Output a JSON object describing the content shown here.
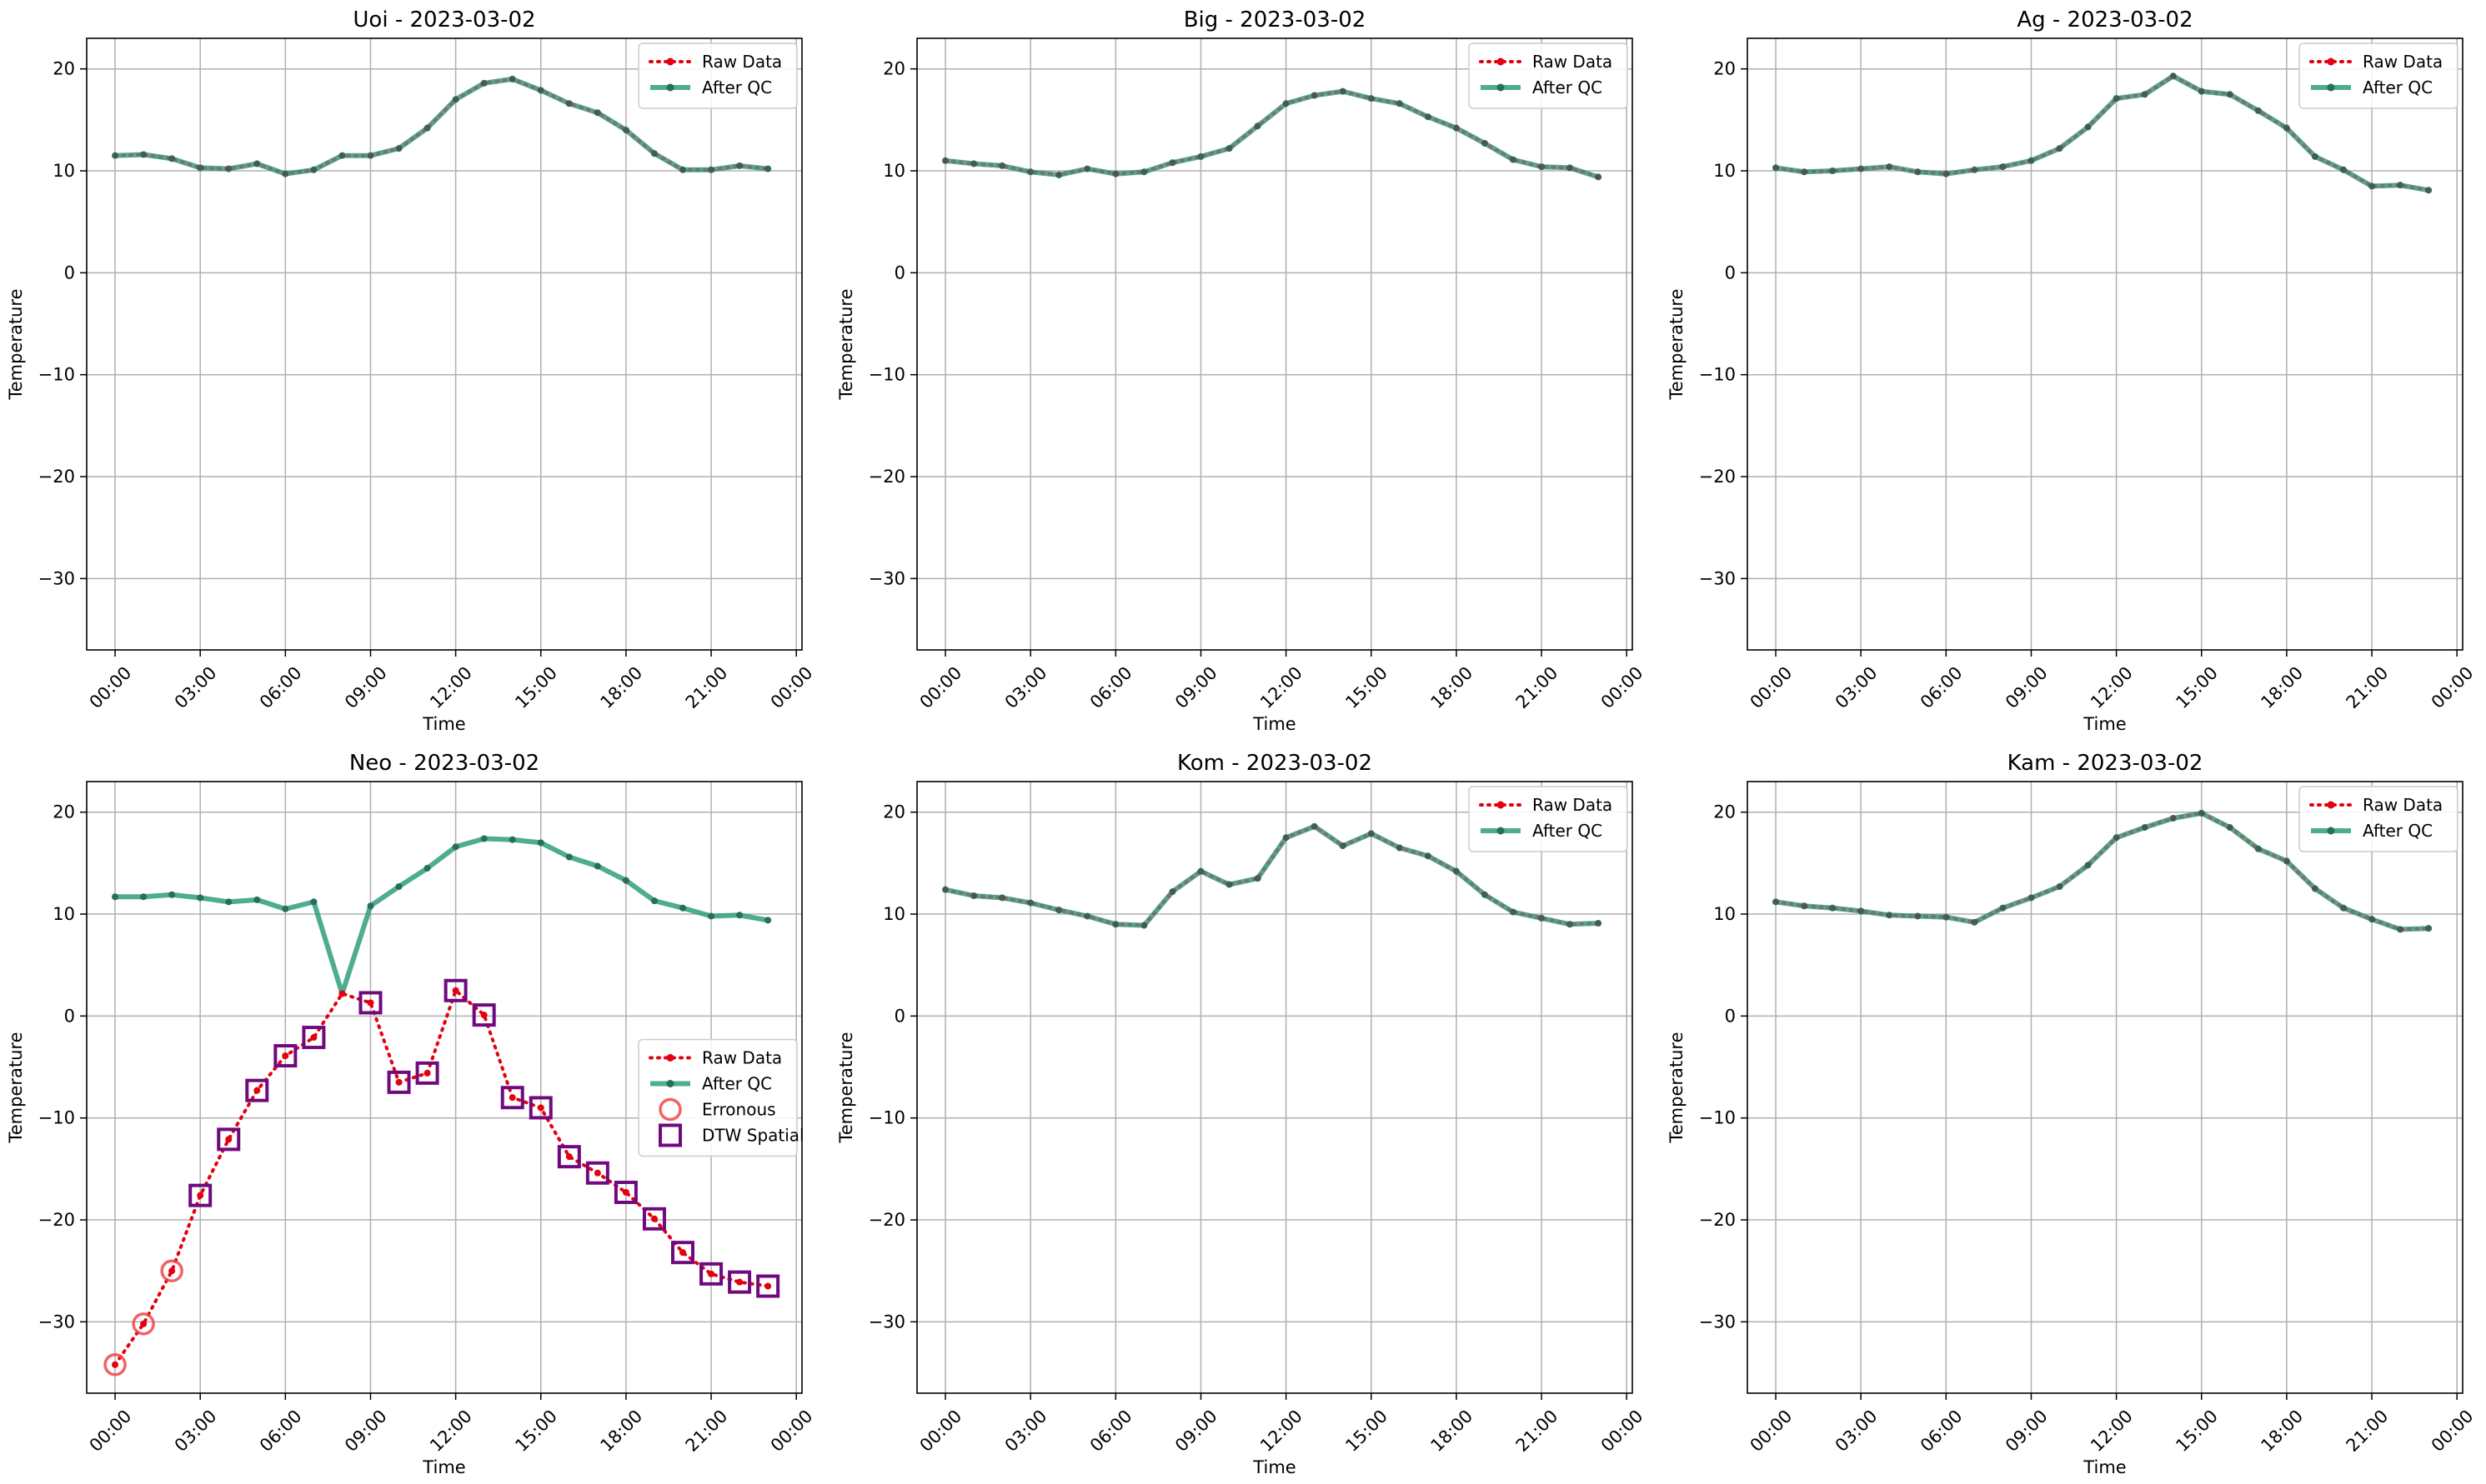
{
  "chart_data": [
    {
      "type": "line",
      "title": "Uoi - 2023-03-02",
      "xlabel": "Time",
      "ylabel": "Temperature",
      "ylim": [
        -37,
        23
      ],
      "yticks": [
        -30,
        -20,
        -10,
        0,
        10,
        20
      ],
      "xlim": [
        -1,
        24.2
      ],
      "xticks": [
        "00:00",
        "03:00",
        "06:00",
        "09:00",
        "12:00",
        "15:00",
        "18:00",
        "21:00",
        "00:00"
      ],
      "grid": true,
      "legend_position": "top-right",
      "legend": [
        "Raw Data",
        "After QC"
      ],
      "series": [
        {
          "name": "Raw Data",
          "x": [
            0,
            1,
            2,
            3,
            4,
            5,
            6,
            7,
            8,
            9,
            10,
            11,
            12,
            13,
            14,
            15,
            16,
            17,
            18,
            19,
            20,
            21,
            22,
            23
          ],
          "values": [
            11.5,
            11.6,
            11.2,
            10.3,
            10.2,
            10.7,
            9.7,
            10.1,
            11.5,
            11.5,
            12.2,
            14.2,
            17.0,
            18.6,
            19.0,
            17.9,
            16.6,
            15.7,
            14.0,
            11.7,
            10.1,
            10.1,
            10.5,
            10.2
          ]
        },
        {
          "name": "After QC",
          "x": [
            0,
            1,
            2,
            3,
            4,
            5,
            6,
            7,
            8,
            9,
            10,
            11,
            12,
            13,
            14,
            15,
            16,
            17,
            18,
            19,
            20,
            21,
            22,
            23
          ],
          "values": [
            11.5,
            11.6,
            11.2,
            10.3,
            10.2,
            10.7,
            9.7,
            10.1,
            11.5,
            11.5,
            12.2,
            14.2,
            17.0,
            18.6,
            19.0,
            17.9,
            16.6,
            15.7,
            14.0,
            11.7,
            10.1,
            10.1,
            10.5,
            10.2
          ]
        }
      ]
    },
    {
      "type": "line",
      "title": "Big - 2023-03-02",
      "xlabel": "Time",
      "ylabel": "Temperature",
      "ylim": [
        -37,
        23
      ],
      "yticks": [
        -30,
        -20,
        -10,
        0,
        10,
        20
      ],
      "xlim": [
        -1,
        24.2
      ],
      "xticks": [
        "00:00",
        "03:00",
        "06:00",
        "09:00",
        "12:00",
        "15:00",
        "18:00",
        "21:00",
        "00:00"
      ],
      "grid": true,
      "legend_position": "top-right",
      "legend": [
        "Raw Data",
        "After QC"
      ],
      "series": [
        {
          "name": "Raw Data",
          "x": [
            0,
            1,
            2,
            3,
            4,
            5,
            6,
            7,
            8,
            9,
            10,
            11,
            12,
            13,
            14,
            15,
            16,
            17,
            18,
            19,
            20,
            21,
            22,
            23
          ],
          "values": [
            11.0,
            10.7,
            10.5,
            9.9,
            9.6,
            10.2,
            9.7,
            9.9,
            10.8,
            11.4,
            12.2,
            14.4,
            16.6,
            17.4,
            17.8,
            17.1,
            16.6,
            15.3,
            14.2,
            12.7,
            11.1,
            10.4,
            10.3,
            9.4
          ]
        },
        {
          "name": "After QC",
          "x": [
            0,
            1,
            2,
            3,
            4,
            5,
            6,
            7,
            8,
            9,
            10,
            11,
            12,
            13,
            14,
            15,
            16,
            17,
            18,
            19,
            20,
            21,
            22,
            23
          ],
          "values": [
            11.0,
            10.7,
            10.5,
            9.9,
            9.6,
            10.2,
            9.7,
            9.9,
            10.8,
            11.4,
            12.2,
            14.4,
            16.6,
            17.4,
            17.8,
            17.1,
            16.6,
            15.3,
            14.2,
            12.7,
            11.1,
            10.4,
            10.3,
            9.4
          ]
        }
      ]
    },
    {
      "type": "line",
      "title": "Ag - 2023-03-02",
      "xlabel": "Time",
      "ylabel": "Temperature",
      "ylim": [
        -37,
        23
      ],
      "yticks": [
        -30,
        -20,
        -10,
        0,
        10,
        20
      ],
      "xlim": [
        -1,
        24.2
      ],
      "xticks": [
        "00:00",
        "03:00",
        "06:00",
        "09:00",
        "12:00",
        "15:00",
        "18:00",
        "21:00",
        "00:00"
      ],
      "grid": true,
      "legend_position": "top-right",
      "legend": [
        "Raw Data",
        "After QC"
      ],
      "series": [
        {
          "name": "Raw Data",
          "x": [
            0,
            1,
            2,
            3,
            4,
            5,
            6,
            7,
            8,
            9,
            10,
            11,
            12,
            13,
            14,
            15,
            16,
            17,
            18,
            19,
            20,
            21,
            22,
            23
          ],
          "values": [
            10.3,
            9.9,
            10.0,
            10.2,
            10.4,
            9.9,
            9.7,
            10.1,
            10.4,
            11.0,
            12.2,
            14.3,
            17.1,
            17.5,
            19.3,
            17.8,
            17.5,
            15.9,
            14.2,
            11.4,
            10.1,
            8.5,
            8.6,
            8.1
          ]
        },
        {
          "name": "After QC",
          "x": [
            0,
            1,
            2,
            3,
            4,
            5,
            6,
            7,
            8,
            9,
            10,
            11,
            12,
            13,
            14,
            15,
            16,
            17,
            18,
            19,
            20,
            21,
            22,
            23
          ],
          "values": [
            10.3,
            9.9,
            10.0,
            10.2,
            10.4,
            9.9,
            9.7,
            10.1,
            10.4,
            11.0,
            12.2,
            14.3,
            17.1,
            17.5,
            19.3,
            17.8,
            17.5,
            15.9,
            14.2,
            11.4,
            10.1,
            8.5,
            8.6,
            8.1
          ]
        }
      ]
    },
    {
      "type": "line",
      "title": "Neo - 2023-03-02",
      "xlabel": "Time",
      "ylabel": "Temperature",
      "ylim": [
        -37,
        23
      ],
      "yticks": [
        -30,
        -20,
        -10,
        0,
        10,
        20
      ],
      "xlim": [
        -1,
        24.2
      ],
      "xticks": [
        "00:00",
        "03:00",
        "06:00",
        "09:00",
        "12:00",
        "15:00",
        "18:00",
        "21:00",
        "00:00"
      ],
      "grid": true,
      "legend_position": "center-right",
      "legend": [
        "Raw Data",
        "After QC",
        "Erronous",
        "DTW Spatial"
      ],
      "series": [
        {
          "name": "Raw Data",
          "x": [
            0,
            1,
            2,
            3,
            4,
            5,
            6,
            7,
            8,
            9,
            10,
            11,
            12,
            13,
            14,
            15,
            16,
            17,
            18,
            19,
            20,
            21,
            22,
            23
          ],
          "values": [
            -34.2,
            -30.2,
            -25.0,
            -17.6,
            -12.1,
            -7.3,
            -3.9,
            -2.1,
            2.2,
            1.3,
            -6.5,
            -5.6,
            2.5,
            0.1,
            -8.0,
            -9.0,
            -13.8,
            -15.4,
            -17.3,
            -19.9,
            -23.2,
            -25.3,
            -26.1,
            -26.5
          ]
        },
        {
          "name": "After QC",
          "x": [
            0,
            1,
            2,
            3,
            4,
            5,
            6,
            7,
            8,
            9,
            10,
            11,
            12,
            13,
            14,
            15,
            16,
            17,
            18,
            19,
            20,
            21,
            22,
            23
          ],
          "values": [
            11.7,
            11.7,
            11.9,
            11.6,
            11.2,
            11.4,
            10.5,
            11.2,
            2.2,
            10.8,
            12.7,
            14.5,
            16.6,
            17.4,
            17.3,
            17.0,
            15.6,
            14.7,
            13.3,
            11.3,
            10.6,
            9.8,
            9.9,
            9.4
          ]
        },
        {
          "name": "Erronous",
          "x": [
            0,
            1,
            2
          ],
          "values": [
            -34.2,
            -30.2,
            -25.0
          ]
        },
        {
          "name": "DTW Spatial",
          "x": [
            3,
            4,
            5,
            6,
            7,
            9,
            10,
            11,
            12,
            13,
            14,
            15,
            16,
            17,
            18,
            19,
            20,
            21,
            22,
            23
          ],
          "values": [
            -17.6,
            -12.1,
            -7.3,
            -3.9,
            -2.1,
            1.3,
            -6.5,
            -5.6,
            2.5,
            0.1,
            -8.0,
            -9.0,
            -13.8,
            -15.4,
            -17.3,
            -19.9,
            -23.2,
            -25.3,
            -26.1,
            -26.5
          ]
        }
      ]
    },
    {
      "type": "line",
      "title": "Kom - 2023-03-02",
      "xlabel": "Time",
      "ylabel": "Temperature",
      "ylim": [
        -37,
        23
      ],
      "yticks": [
        -30,
        -20,
        -10,
        0,
        10,
        20
      ],
      "xlim": [
        -1,
        24.2
      ],
      "xticks": [
        "00:00",
        "03:00",
        "06:00",
        "09:00",
        "12:00",
        "15:00",
        "18:00",
        "21:00",
        "00:00"
      ],
      "grid": true,
      "legend_position": "top-right",
      "legend": [
        "Raw Data",
        "After QC"
      ],
      "series": [
        {
          "name": "Raw Data",
          "x": [
            0,
            1,
            2,
            3,
            4,
            5,
            6,
            7,
            8,
            9,
            10,
            11,
            12,
            13,
            14,
            15,
            16,
            17,
            18,
            19,
            20,
            21,
            22,
            23
          ],
          "values": [
            12.4,
            11.8,
            11.6,
            11.1,
            10.4,
            9.8,
            9.0,
            8.9,
            12.2,
            14.2,
            12.9,
            13.5,
            17.5,
            18.6,
            16.7,
            17.9,
            16.5,
            15.7,
            14.2,
            11.9,
            10.2,
            9.6,
            9.0,
            9.1
          ]
        },
        {
          "name": "After QC",
          "x": [
            0,
            1,
            2,
            3,
            4,
            5,
            6,
            7,
            8,
            9,
            10,
            11,
            12,
            13,
            14,
            15,
            16,
            17,
            18,
            19,
            20,
            21,
            22,
            23
          ],
          "values": [
            12.4,
            11.8,
            11.6,
            11.1,
            10.4,
            9.8,
            9.0,
            8.9,
            12.2,
            14.2,
            12.9,
            13.5,
            17.5,
            18.6,
            16.7,
            17.9,
            16.5,
            15.7,
            14.2,
            11.9,
            10.2,
            9.6,
            9.0,
            9.1
          ]
        }
      ]
    },
    {
      "type": "line",
      "title": "Kam - 2023-03-02",
      "xlabel": "Time",
      "ylabel": "Temperature",
      "ylim": [
        -37,
        23
      ],
      "yticks": [
        -30,
        -20,
        -10,
        0,
        10,
        20
      ],
      "xlim": [
        -1,
        24.2
      ],
      "xticks": [
        "00:00",
        "03:00",
        "06:00",
        "09:00",
        "12:00",
        "15:00",
        "18:00",
        "21:00",
        "00:00"
      ],
      "grid": true,
      "legend_position": "top-right",
      "legend": [
        "Raw Data",
        "After QC"
      ],
      "series": [
        {
          "name": "Raw Data",
          "x": [
            0,
            1,
            2,
            3,
            4,
            5,
            6,
            7,
            8,
            9,
            10,
            11,
            12,
            13,
            14,
            15,
            16,
            17,
            18,
            19,
            20,
            21,
            22,
            23
          ],
          "values": [
            11.2,
            10.8,
            10.6,
            10.3,
            9.9,
            9.8,
            9.7,
            9.2,
            10.6,
            11.6,
            12.7,
            14.8,
            17.5,
            18.5,
            19.4,
            19.9,
            18.5,
            16.4,
            15.2,
            12.5,
            10.6,
            9.5,
            8.5,
            8.6
          ]
        },
        {
          "name": "After QC",
          "x": [
            0,
            1,
            2,
            3,
            4,
            5,
            6,
            7,
            8,
            9,
            10,
            11,
            12,
            13,
            14,
            15,
            16,
            17,
            18,
            19,
            20,
            21,
            22,
            23
          ],
          "values": [
            11.2,
            10.8,
            10.6,
            10.3,
            9.9,
            9.8,
            9.7,
            9.2,
            10.6,
            11.6,
            12.7,
            14.8,
            17.5,
            18.5,
            19.4,
            19.9,
            18.5,
            16.4,
            15.2,
            12.5,
            10.6,
            9.5,
            8.5,
            8.6
          ]
        }
      ]
    }
  ],
  "colors": {
    "raw": "#e3000f",
    "qc": "#2e9e7e",
    "qc_marker": "#2a6d5a",
    "erroneous": "#f04848",
    "dtw": "#6f0a7e",
    "grid": "#b0b0b0"
  }
}
